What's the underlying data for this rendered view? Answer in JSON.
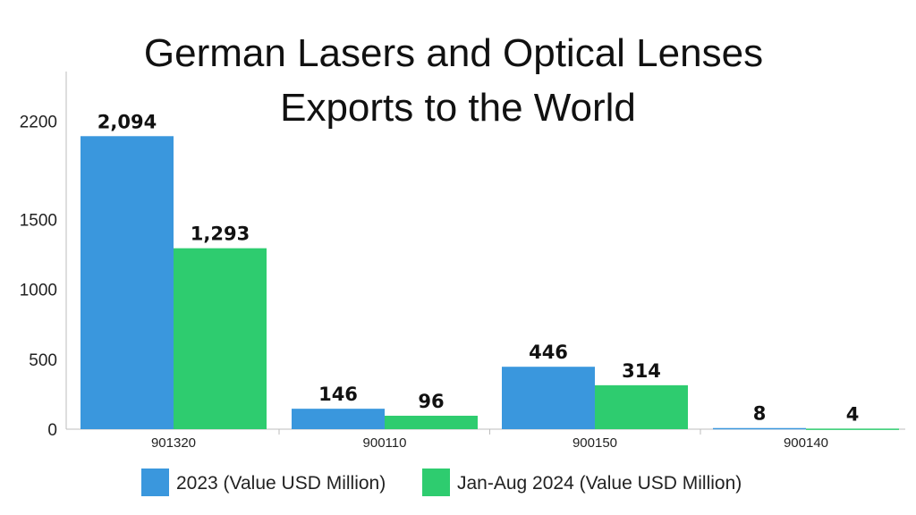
{
  "chart_data": {
    "type": "bar",
    "title_lines": [
      "German Lasers and Optical Lenses",
      "Exports to the World"
    ],
    "categories": [
      "901320",
      "900110",
      "900150",
      "900140"
    ],
    "series": [
      {
        "name": "2023 (Value USD Million)",
        "values": [
          2094,
          146,
          446,
          8
        ],
        "labels": [
          "2,094",
          "146",
          "446",
          "8"
        ],
        "color": "#3a97dd"
      },
      {
        "name": "Jan-Aug 2024 (Value USD Million)",
        "values": [
          1293,
          96,
          314,
          4
        ],
        "labels": [
          "1,293",
          "96",
          "314",
          "4"
        ],
        "color": "#2ecc6f"
      }
    ],
    "y_ticks": [
      "0",
      "500",
      "1000",
      "1500",
      "2200"
    ],
    "legend_position": "bottom",
    "grid": false
  }
}
